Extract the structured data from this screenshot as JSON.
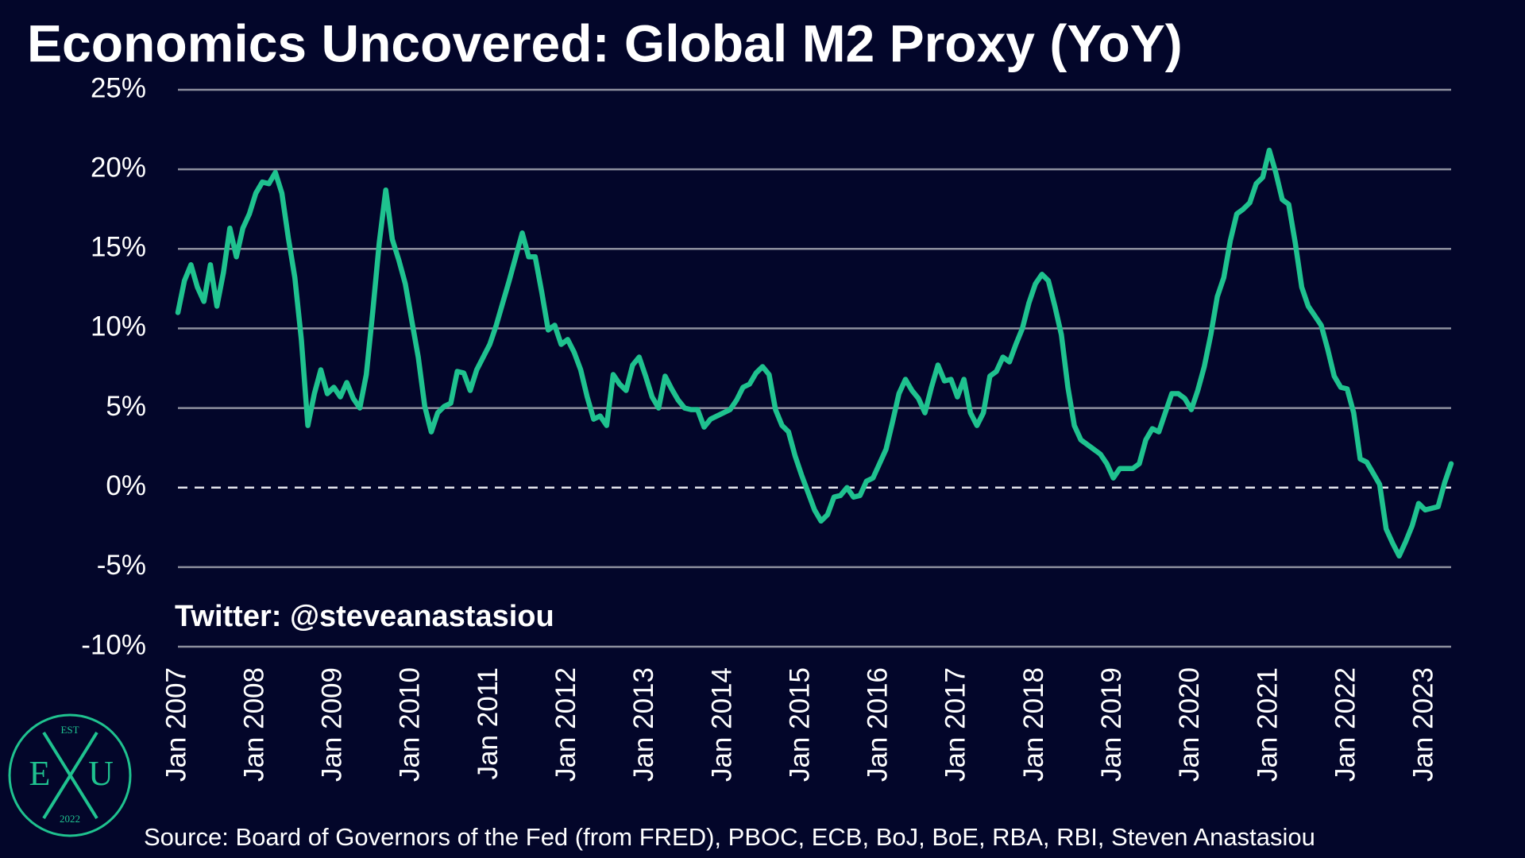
{
  "chart_data": {
    "type": "line",
    "title": "Economics Uncovered: Global M2 Proxy (YoY)",
    "annotation": "Twitter: @steveanastasiou",
    "source": "Source: Board of Governors of the Fed (from FRED), PBOC, ECB, BoJ, BoE, RBA, RBI, Steven Anastasiou",
    "categories": [
      "Jan 2007",
      null,
      null,
      null,
      null,
      null,
      null,
      null,
      null,
      null,
      null,
      null,
      "Jan 2008",
      null,
      null,
      null,
      null,
      null,
      null,
      null,
      null,
      null,
      null,
      null,
      "Jan 2009",
      null,
      null,
      null,
      null,
      null,
      null,
      null,
      null,
      null,
      null,
      null,
      "Jan 2010",
      null,
      null,
      null,
      null,
      null,
      null,
      null,
      null,
      null,
      null,
      null,
      "Jan 2011",
      null,
      null,
      null,
      null,
      null,
      null,
      null,
      null,
      null,
      null,
      null,
      "Jan 2012",
      null,
      null,
      null,
      null,
      null,
      null,
      null,
      null,
      null,
      null,
      null,
      "Jan 2013",
      null,
      null,
      null,
      null,
      null,
      null,
      null,
      null,
      null,
      null,
      null,
      "Jan 2014",
      null,
      null,
      null,
      null,
      null,
      null,
      null,
      null,
      null,
      null,
      null,
      "Jan 2015",
      null,
      null,
      null,
      null,
      null,
      null,
      null,
      null,
      null,
      null,
      null,
      "Jan 2016",
      null,
      null,
      null,
      null,
      null,
      null,
      null,
      null,
      null,
      null,
      null,
      "Jan 2017",
      null,
      null,
      null,
      null,
      null,
      null,
      null,
      null,
      null,
      null,
      null,
      "Jan 2018",
      null,
      null,
      null,
      null,
      null,
      null,
      null,
      null,
      null,
      null,
      null,
      "Jan 2019",
      null,
      null,
      null,
      null,
      null,
      null,
      null,
      null,
      null,
      null,
      null,
      "Jan 2020",
      null,
      null,
      null,
      null,
      null,
      null,
      null,
      null,
      null,
      null,
      null,
      "Jan 2021",
      null,
      null,
      null,
      null,
      null,
      null,
      null,
      null,
      null,
      null,
      null,
      "Jan 2022",
      null,
      null,
      null,
      null,
      null,
      null,
      null,
      null,
      null,
      null,
      null,
      "Jan 2023",
      null,
      null,
      null,
      null
    ],
    "series": [
      {
        "color": "#1fc28f",
        "values": [
          11,
          13,
          14,
          12.6,
          11.7,
          14,
          11.4,
          13.5,
          16.3,
          14.5,
          16.3,
          17.2,
          18.5,
          19.2,
          19.1,
          19.8,
          18.5,
          15.7,
          13.2,
          9.3,
          3.9,
          5.9,
          7.4,
          5.9,
          6.3,
          5.7,
          6.6,
          5.6,
          5.0,
          7.1,
          11.1,
          15.4,
          18.7,
          15.6,
          14.3,
          12.8,
          10.5,
          8.2,
          5.1,
          3.5,
          4.7,
          5.1,
          5.3,
          7.3,
          7.2,
          6.1,
          7.4,
          8.2,
          9.0,
          10.2,
          11.6,
          13.0,
          14.5,
          16.0,
          14.5,
          14.5,
          12.3,
          9.9,
          10.2,
          9.0,
          9.3,
          8.5,
          7.4,
          5.7,
          4.3,
          4.5,
          3.9,
          7.1,
          6.5,
          6.1,
          7.7,
          8.2,
          7.0,
          5.7,
          5.0,
          7.0,
          6.2,
          5.5,
          5.0,
          4.9,
          4.9,
          3.8,
          4.3,
          4.5,
          4.7,
          4.9,
          5.5,
          6.3,
          6.5,
          7.2,
          7.6,
          7.1,
          4.9,
          3.9,
          3.5,
          2.0,
          0.8,
          -0.3,
          -1.4,
          -2.1,
          -1.7,
          -0.6,
          -0.5,
          0,
          -0.6,
          -0.5,
          0.4,
          0.6,
          1.5,
          2.4,
          4.1,
          5.9,
          6.8,
          6.1,
          5.6,
          4.7,
          6.3,
          7.7,
          6.7,
          6.8,
          5.7,
          6.8,
          4.7,
          3.9,
          4.7,
          7.0,
          7.3,
          8.2,
          7.9,
          9.0,
          10.0,
          11.6,
          12.8,
          13.4,
          13.0,
          11.4,
          9.6,
          6.3,
          3.9,
          3.0,
          2.7,
          2.4,
          2.1,
          1.5,
          0.6,
          1.2,
          1.2,
          1.2,
          1.5,
          3.0,
          3.7,
          3.5,
          4.7,
          5.9,
          5.9,
          5.6,
          4.9,
          6.1,
          7.6,
          9.6,
          12.0,
          13.2,
          15.5,
          17.2,
          17.5,
          17.9,
          19.1,
          19.5,
          21.2,
          19.8,
          18.1,
          17.8,
          15.4,
          12.6,
          11.4,
          10.8,
          10.2,
          8.7,
          7.0,
          6.3,
          6.2,
          4.7,
          1.8,
          1.6,
          0.9,
          0.2,
          -2.6,
          -3.5,
          -4.3,
          -3.4,
          -2.4,
          -1.0,
          -1.4,
          -1.3,
          -1.2,
          0.3,
          1.5
        ]
      }
    ],
    "ylim": [
      -10,
      25
    ],
    "yticks": [
      {
        "value": -10,
        "label": "-10%"
      },
      {
        "value": -5,
        "label": "-5%"
      },
      {
        "value": 0,
        "label": "0%"
      },
      {
        "value": 5,
        "label": "5%"
      },
      {
        "value": 10,
        "label": "10%"
      },
      {
        "value": 15,
        "label": "15%"
      },
      {
        "value": 20,
        "label": "20%"
      },
      {
        "value": 25,
        "label": "25%"
      }
    ],
    "grid": true
  },
  "logo": {
    "top": "EST",
    "left": "E",
    "right": "U",
    "bottom": "2022"
  }
}
